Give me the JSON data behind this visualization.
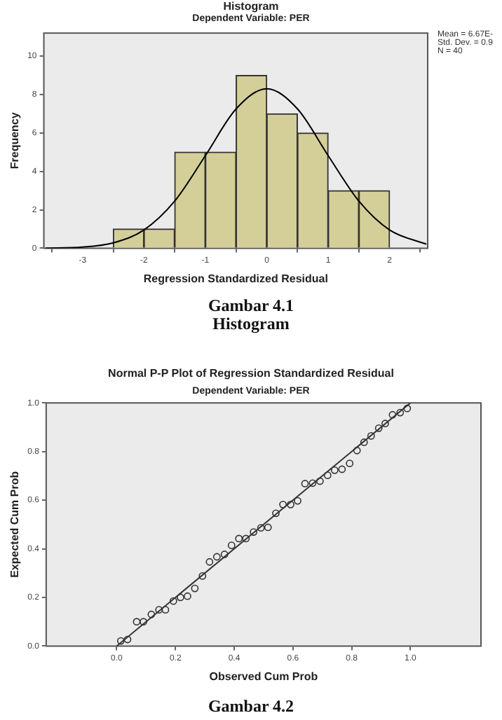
{
  "chart_data": [
    {
      "type": "histogram",
      "title": "Histogram",
      "subtitle": "Dependent Variable: PER",
      "xlabel": "Regression Standardized Residual",
      "ylabel": "Frequency",
      "bins": [
        -2.5,
        -2,
        -1.5,
        -1,
        -0.5,
        0,
        0.5,
        1,
        1.5,
        2
      ],
      "values": [
        1,
        1,
        5,
        5,
        9,
        7,
        6,
        3,
        3
      ],
      "color": "#d4cf98",
      "series": [
        {
          "type": "line",
          "color": "#000000",
          "x": [
            -3.6,
            -3,
            -2.5,
            -2,
            -1.5,
            -1,
            -0.5,
            0,
            0.5,
            1,
            1.5,
            2,
            2.6
          ],
          "values": [
            0.01,
            0.06,
            0.28,
            0.95,
            2.45,
            4.82,
            7.25,
            8.3,
            7.25,
            4.82,
            2.45,
            0.95,
            0.21
          ]
        }
      ],
      "xlim": [
        -3.63,
        2.62
      ],
      "xticks": [
        -3,
        -2,
        -1,
        0,
        1,
        2
      ],
      "ylim": [
        0,
        11.2
      ],
      "yticks": [
        0,
        2,
        4,
        6,
        8,
        10
      ],
      "grid": false,
      "annotations": [
        "Mean = 6.67E-",
        "Std. Dev. = 0.9",
        "N = 40",
        "Gambar 4.1",
        "Histogram"
      ]
    },
    {
      "type": "scatter",
      "title": "Normal P-P Plot of Regression Standardized Residual",
      "subtitle": "Dependent Variable: PER",
      "xlabel": "Observed Cum Prob",
      "ylabel": "Expected Cum Prob",
      "series": [
        {
          "type": "scatter",
          "marker": "circle",
          "color": "#333333",
          "x": [
            0.014,
            0.037,
            0.068,
            0.091,
            0.118,
            0.144,
            0.166,
            0.193,
            0.217,
            0.241,
            0.266,
            0.292,
            0.316,
            0.341,
            0.367,
            0.391,
            0.416,
            0.44,
            0.466,
            0.491,
            0.515,
            0.542,
            0.566,
            0.592,
            0.616,
            0.641,
            0.667,
            0.692,
            0.718,
            0.742,
            0.767,
            0.793,
            0.818,
            0.842,
            0.866,
            0.892,
            0.914,
            0.939,
            0.965,
            0.989
          ],
          "values": [
            0.021,
            0.027,
            0.1,
            0.1,
            0.13,
            0.149,
            0.149,
            0.185,
            0.2,
            0.205,
            0.237,
            0.288,
            0.346,
            0.367,
            0.377,
            0.414,
            0.442,
            0.442,
            0.469,
            0.486,
            0.488,
            0.546,
            0.582,
            0.582,
            0.597,
            0.668,
            0.67,
            0.678,
            0.702,
            0.723,
            0.727,
            0.751,
            0.804,
            0.838,
            0.864,
            0.896,
            0.915,
            0.951,
            0.96,
            0.977
          ]
        },
        {
          "type": "line",
          "marker": "none",
          "color": "#333333",
          "x": [
            0,
            1
          ],
          "values": [
            0,
            1
          ]
        }
      ],
      "xlim": [
        -0.24,
        1.24
      ],
      "xticks": [
        {
          "value": 0,
          "label": "0.0"
        },
        0.2,
        0.4,
        0.6,
        0.8,
        {
          "value": 1,
          "label": "1.0"
        }
      ],
      "ylim": [
        0,
        1
      ],
      "yticks": [
        {
          "value": 0,
          "label": "0.0"
        },
        0.2,
        0.4,
        0.6,
        0.8,
        {
          "value": 1,
          "label": "1.0"
        }
      ],
      "grid": false,
      "annotations": [
        "Gambar 4.2"
      ]
    }
  ]
}
